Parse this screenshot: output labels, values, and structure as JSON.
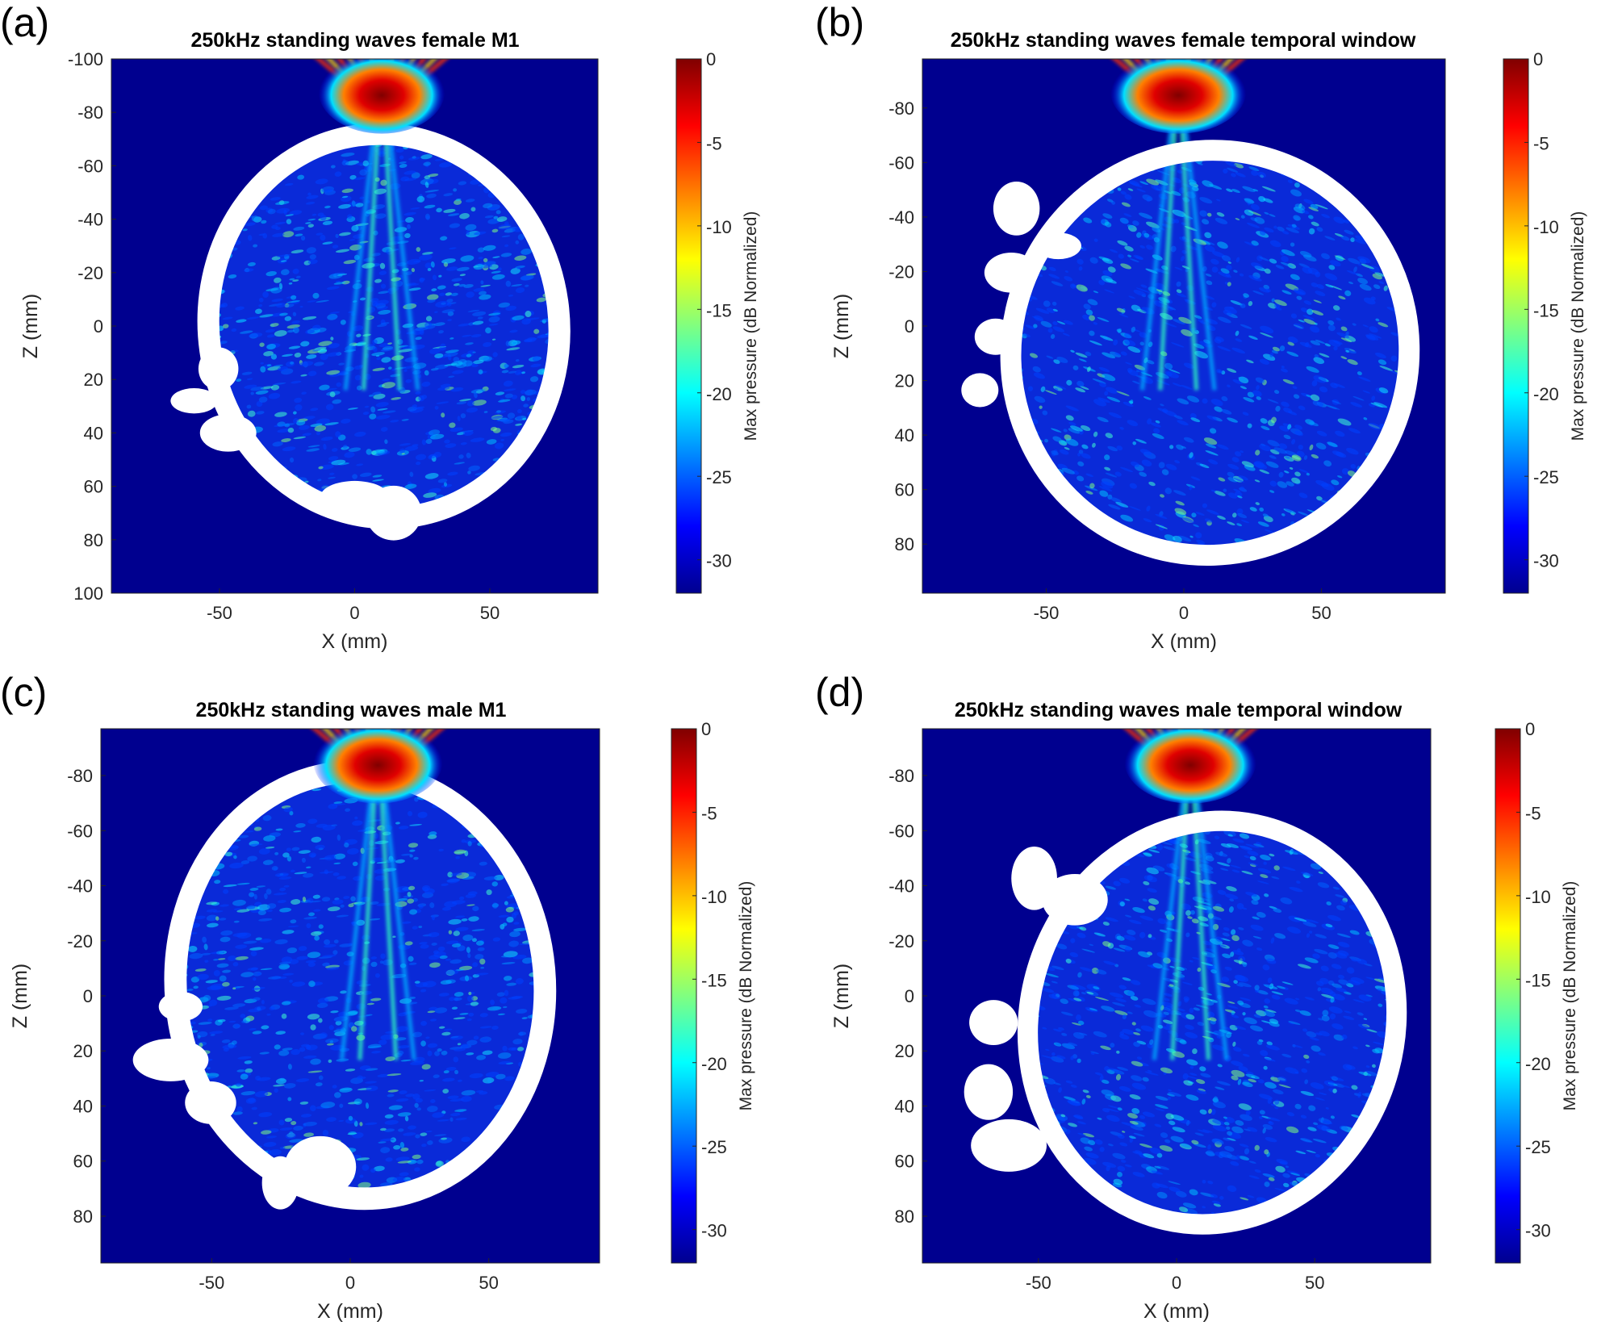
{
  "chart_data": [
    {
      "type": "heatmap",
      "panel": "(a)",
      "title": "250kHz standing waves female M1",
      "xlabel": "X (mm)",
      "ylabel": "Z (mm)",
      "x_ticks": [
        -50,
        0,
        50
      ],
      "y_ticks": [
        -100,
        -80,
        -60,
        -40,
        -20,
        0,
        20,
        40,
        60,
        80,
        100
      ],
      "xlim": [
        -90,
        90
      ],
      "ylim": [
        -100,
        100
      ],
      "colorbar": {
        "label": "Max pressure (dB Normalized)",
        "ticks": [
          0,
          -5,
          -10,
          -15,
          -20,
          -25,
          -30
        ],
        "range": [
          -32,
          0
        ],
        "colormap": "jet"
      },
      "transducer_focus_x": 10,
      "background_color": "#00008f",
      "skull_color": "#ffffff"
    },
    {
      "type": "heatmap",
      "panel": "(b)",
      "title": "250kHz standing waves female temporal window",
      "xlabel": "X (mm)",
      "ylabel": "Z (mm)",
      "x_ticks": [
        -50,
        0,
        50
      ],
      "y_ticks": [
        -80,
        -60,
        -40,
        -20,
        0,
        20,
        40,
        60,
        80
      ],
      "xlim": [
        -95,
        95
      ],
      "ylim": [
        -98,
        98
      ],
      "colorbar": {
        "label": "Max pressure (dB Normalized)",
        "ticks": [
          0,
          -5,
          -10,
          -15,
          -20,
          -25,
          -30
        ],
        "range": [
          -32,
          0
        ],
        "colormap": "jet"
      },
      "transducer_focus_x": -2,
      "background_color": "#00008f",
      "skull_color": "#ffffff"
    },
    {
      "type": "heatmap",
      "panel": "(c)",
      "title": "250kHz standing waves male M1",
      "xlabel": "X (mm)",
      "ylabel": "Z (mm)",
      "x_ticks": [
        -50,
        0,
        50
      ],
      "y_ticks": [
        -80,
        -60,
        -40,
        -20,
        0,
        20,
        40,
        60,
        80
      ],
      "xlim": [
        -90,
        90
      ],
      "ylim": [
        -97,
        97
      ],
      "colorbar": {
        "label": "Max pressure (dB Normalized)",
        "ticks": [
          0,
          -5,
          -10,
          -15,
          -20,
          -25,
          -30
        ],
        "range": [
          -32,
          0
        ],
        "colormap": "jet"
      },
      "transducer_focus_x": 10,
      "background_color": "#00008f",
      "skull_color": "#ffffff"
    },
    {
      "type": "heatmap",
      "panel": "(d)",
      "title": "250kHz standing waves male temporal window",
      "xlabel": "X (mm)",
      "ylabel": "Z (mm)",
      "x_ticks": [
        -50,
        0,
        50
      ],
      "y_ticks": [
        -80,
        -60,
        -40,
        -20,
        0,
        20,
        40,
        60,
        80
      ],
      "xlim": [
        -92,
        92
      ],
      "ylim": [
        -97,
        97
      ],
      "colorbar": {
        "label": "Max pressure (dB Normalized)",
        "ticks": [
          0,
          -5,
          -10,
          -15,
          -20,
          -25,
          -30
        ],
        "range": [
          -32,
          0
        ],
        "colormap": "jet"
      },
      "transducer_focus_x": 5,
      "background_color": "#00008f",
      "skull_color": "#ffffff"
    }
  ]
}
